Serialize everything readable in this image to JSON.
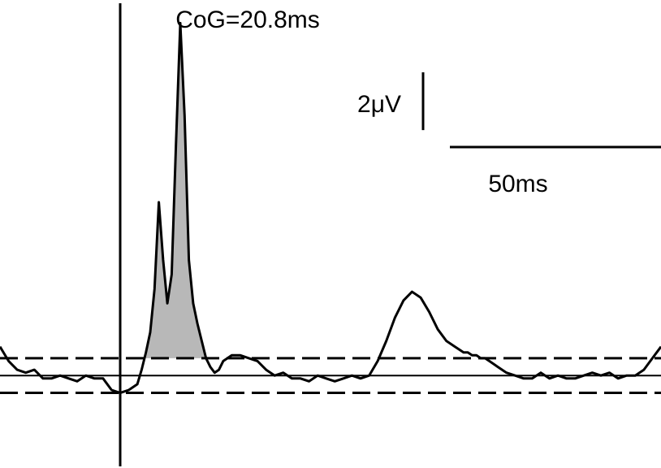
{
  "chart_data": {
    "type": "line",
    "annotation": "CoG=20.8ms",
    "scale_bar": {
      "y_label": "2μV",
      "y_value": 2,
      "y_unit": "μV",
      "x_label": "50ms",
      "x_value": 50,
      "x_unit": "ms"
    },
    "xlim": [
      -28,
      126
    ],
    "ylim": [
      -3.2,
      13
    ],
    "stimulus_onset_x": 0,
    "baseline": 0,
    "threshold_band": [
      -0.6,
      0.6
    ],
    "series": [
      {
        "x": [
          -28,
          -26,
          -24,
          -22,
          -20,
          -18,
          -16,
          -14,
          -12,
          -10,
          -8,
          -6,
          -4,
          -2,
          0,
          2,
          4,
          5,
          6,
          7,
          8,
          9,
          10,
          11,
          12,
          13,
          14,
          15,
          16,
          17,
          18,
          19,
          20,
          21,
          22,
          23,
          24,
          25,
          26,
          28,
          30,
          32,
          34,
          36,
          38,
          40,
          42,
          44,
          46,
          48,
          50,
          52,
          54,
          56,
          58,
          60,
          62,
          64,
          66,
          68,
          70,
          72,
          74,
          76,
          78,
          80,
          81,
          82,
          83,
          84,
          85,
          86,
          87,
          88,
          90,
          92,
          94,
          96,
          98,
          100,
          102,
          104,
          106,
          108,
          110,
          112,
          114,
          116,
          118,
          120,
          122,
          124,
          126
        ],
        "y": [
          1.0,
          0.5,
          0.2,
          0.1,
          0.2,
          -0.1,
          -0.1,
          0.0,
          -0.1,
          -0.2,
          0.0,
          -0.1,
          -0.1,
          -0.5,
          -0.6,
          -0.5,
          -0.3,
          0.2,
          0.8,
          1.5,
          3.0,
          6.0,
          4.0,
          2.5,
          3.5,
          8.0,
          12.2,
          9.0,
          4.0,
          2.5,
          1.8,
          1.2,
          0.6,
          0.3,
          0.1,
          0.2,
          0.5,
          0.6,
          0.7,
          0.7,
          0.6,
          0.5,
          0.2,
          0.0,
          0.1,
          -0.1,
          -0.1,
          -0.2,
          0.0,
          -0.1,
          -0.2,
          -0.1,
          0.0,
          -0.1,
          0.0,
          0.5,
          1.2,
          2.0,
          2.6,
          2.9,
          2.7,
          2.2,
          1.6,
          1.2,
          1.0,
          0.8,
          0.8,
          0.7,
          0.7,
          0.6,
          0.6,
          0.5,
          0.4,
          0.3,
          0.1,
          0.0,
          -0.1,
          -0.1,
          0.1,
          -0.1,
          0.0,
          -0.1,
          -0.1,
          0.0,
          0.1,
          0.0,
          0.1,
          -0.1,
          0.0,
          0.0,
          0.2,
          0.6,
          1.0
        ]
      }
    ],
    "shaded_region_x": [
      6,
      22
    ],
    "colors": {
      "trace": "#000000",
      "shade": "#b8b8b8",
      "background": "#ffffff"
    }
  }
}
